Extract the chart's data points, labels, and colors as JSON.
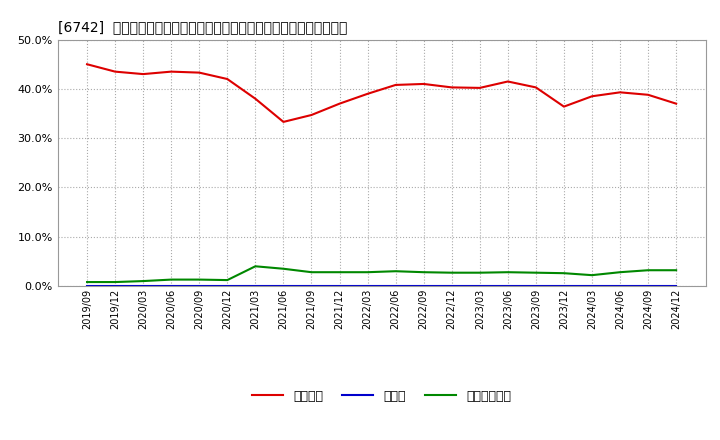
{
  "title": "[6742]  自己資本、のれん、繰延税金資産の総資産に対する比率の推移",
  "x_labels": [
    "2019/09",
    "2019/12",
    "2020/03",
    "2020/06",
    "2020/09",
    "2020/12",
    "2021/03",
    "2021/06",
    "2021/09",
    "2021/12",
    "2022/03",
    "2022/06",
    "2022/09",
    "2022/12",
    "2023/03",
    "2023/06",
    "2023/09",
    "2023/12",
    "2024/03",
    "2024/06",
    "2024/09",
    "2024/12"
  ],
  "jikoshihon": [
    0.45,
    0.435,
    0.43,
    0.435,
    0.433,
    0.42,
    0.38,
    0.333,
    0.347,
    0.37,
    0.39,
    0.408,
    0.41,
    0.403,
    0.402,
    0.415,
    0.403,
    0.364,
    0.385,
    0.393,
    0.388,
    0.37
  ],
  "noren": [
    0.001,
    0.001,
    0.001,
    0.001,
    0.001,
    0.001,
    0.001,
    0.001,
    0.001,
    0.001,
    0.001,
    0.001,
    0.001,
    0.001,
    0.001,
    0.001,
    0.001,
    0.001,
    0.001,
    0.001,
    0.001,
    0.001
  ],
  "kurinobezeikinsisan": [
    0.008,
    0.008,
    0.01,
    0.013,
    0.013,
    0.012,
    0.04,
    0.035,
    0.028,
    0.028,
    0.028,
    0.03,
    0.028,
    0.027,
    0.027,
    0.028,
    0.027,
    0.026,
    0.022,
    0.028,
    0.032,
    0.032
  ],
  "jikoshihon_color": "#dd0000",
  "noren_color": "#0000cc",
  "kurinobe_color": "#008800",
  "ylim": [
    0.0,
    0.5
  ],
  "yticks": [
    0.0,
    0.1,
    0.2,
    0.3,
    0.4,
    0.5
  ],
  "background_color": "#ffffff",
  "plot_bg_color": "#ffffff",
  "grid_color": "#aaaaaa",
  "legend_labels": [
    "自己資本",
    "のれん",
    "繰延税金資産"
  ]
}
